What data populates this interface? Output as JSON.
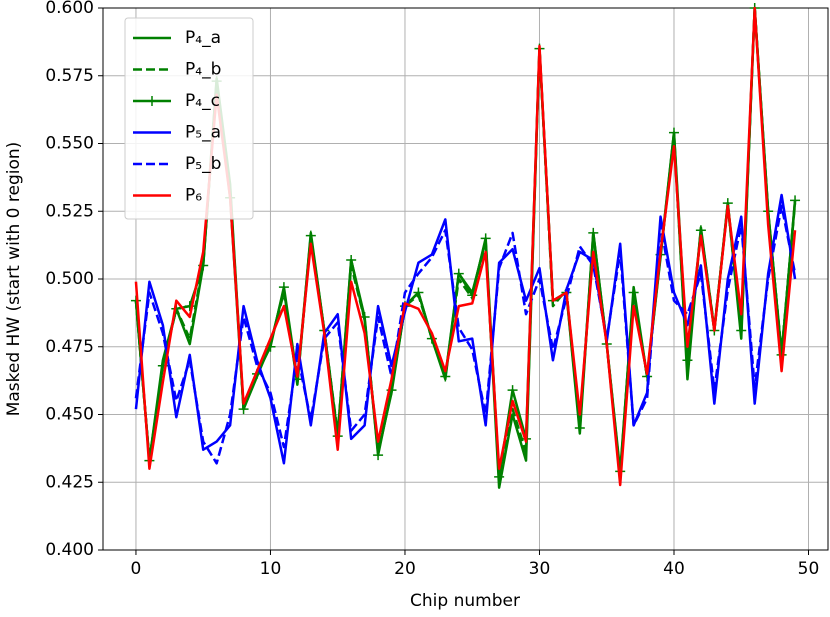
{
  "chart_data": {
    "type": "line",
    "x_label": "Chip number",
    "y_label": "Masked HW (start with 0 region)",
    "x": [
      0,
      1,
      2,
      3,
      4,
      5,
      6,
      7,
      8,
      9,
      10,
      11,
      12,
      13,
      14,
      15,
      16,
      17,
      18,
      19,
      20,
      21,
      22,
      23,
      24,
      25,
      26,
      27,
      28,
      29,
      30,
      31,
      32,
      33,
      34,
      35,
      36,
      37,
      38,
      39,
      40,
      41,
      42,
      43,
      44,
      45,
      46,
      47,
      48,
      49
    ],
    "xlim": [
      -2.45,
      51.45
    ],
    "xticks": [
      0,
      10,
      20,
      30,
      40,
      50
    ],
    "ylim": [
      0.4,
      0.6
    ],
    "yticks": [
      {
        "value": 0.4,
        "label": "0.400"
      },
      {
        "value": 0.425,
        "label": "0.425"
      },
      {
        "value": 0.45,
        "label": "0.450"
      },
      {
        "value": 0.475,
        "label": "0.475"
      },
      {
        "value": 0.5,
        "label": "0.500"
      },
      {
        "value": 0.525,
        "label": "0.525"
      },
      {
        "value": 0.55,
        "label": "0.550"
      },
      {
        "value": 0.575,
        "label": "0.575"
      },
      {
        "value": 0.6,
        "label": "0.600"
      }
    ],
    "grid": true,
    "legend": "upper left",
    "series": [
      {
        "name": "P₄_a",
        "color": "#008000",
        "dash": false,
        "marker": null,
        "values": [
          0.492,
          0.433,
          0.47,
          0.489,
          0.476,
          0.505,
          0.574,
          0.535,
          0.452,
          0.464,
          0.476,
          0.496,
          0.461,
          0.517,
          0.481,
          0.442,
          0.507,
          0.485,
          0.436,
          0.458,
          0.49,
          0.495,
          0.478,
          0.463,
          0.502,
          0.495,
          0.514,
          0.423,
          0.45,
          0.433,
          0.585,
          0.492,
          0.495,
          0.443,
          0.517,
          0.476,
          0.427,
          0.497,
          0.464,
          0.508,
          0.554,
          0.463,
          0.519,
          0.481,
          0.528,
          0.478,
          0.6,
          0.525,
          0.472,
          0.529
        ]
      },
      {
        "name": "P₄_b",
        "color": "#008000",
        "dash": true,
        "marker": null,
        "values": [
          0.492,
          0.433,
          0.468,
          0.489,
          0.478,
          0.506,
          0.572,
          0.533,
          0.452,
          0.465,
          0.476,
          0.495,
          0.462,
          0.515,
          0.481,
          0.443,
          0.505,
          0.485,
          0.437,
          0.459,
          0.49,
          0.494,
          0.478,
          0.464,
          0.5,
          0.493,
          0.513,
          0.426,
          0.452,
          0.436,
          0.585,
          0.49,
          0.496,
          0.446,
          0.515,
          0.476,
          0.428,
          0.495,
          0.464,
          0.509,
          0.552,
          0.466,
          0.518,
          0.482,
          0.527,
          0.48,
          0.6,
          0.524,
          0.473,
          0.528
        ]
      },
      {
        "name": "P₄_c",
        "color": "#008000",
        "dash": false,
        "marker": "+",
        "values": [
          0.492,
          0.433,
          0.468,
          0.489,
          0.49,
          0.505,
          0.573,
          0.53,
          0.452,
          0.465,
          0.475,
          0.497,
          0.463,
          0.516,
          0.481,
          0.442,
          0.507,
          0.486,
          0.435,
          0.459,
          0.49,
          0.495,
          0.478,
          0.464,
          0.502,
          0.494,
          0.515,
          0.427,
          0.459,
          0.441,
          0.585,
          0.492,
          0.495,
          0.445,
          0.517,
          0.476,
          0.429,
          0.495,
          0.464,
          0.509,
          0.554,
          0.47,
          0.518,
          0.481,
          0.528,
          0.481,
          0.6,
          0.525,
          0.472,
          0.529
        ]
      },
      {
        "name": "P₅_a",
        "color": "#0000ff",
        "dash": false,
        "marker": null,
        "values": [
          0.452,
          0.499,
          0.483,
          0.449,
          0.472,
          0.437,
          0.44,
          0.446,
          0.49,
          0.47,
          0.456,
          0.432,
          0.476,
          0.446,
          0.48,
          0.487,
          0.441,
          0.446,
          0.49,
          0.468,
          0.488,
          0.506,
          0.509,
          0.522,
          0.477,
          0.478,
          0.446,
          0.506,
          0.511,
          0.492,
          0.504,
          0.47,
          0.496,
          0.51,
          0.507,
          0.477,
          0.513,
          0.446,
          0.458,
          0.523,
          0.495,
          0.483,
          0.505,
          0.454,
          0.5,
          0.523,
          0.454,
          0.502,
          0.531,
          0.5
        ]
      },
      {
        "name": "P₅_b",
        "color": "#0000ff",
        "dash": true,
        "marker": null,
        "values": [
          0.456,
          0.495,
          0.48,
          0.455,
          0.47,
          0.44,
          0.432,
          0.45,
          0.486,
          0.468,
          0.458,
          0.438,
          0.472,
          0.448,
          0.478,
          0.484,
          0.444,
          0.45,
          0.486,
          0.464,
          0.495,
          0.502,
          0.508,
          0.518,
          0.482,
          0.474,
          0.45,
          0.504,
          0.517,
          0.487,
          0.5,
          0.474,
          0.493,
          0.512,
          0.505,
          0.478,
          0.51,
          0.446,
          0.456,
          0.52,
          0.492,
          0.487,
          0.502,
          0.459,
          0.496,
          0.52,
          0.46,
          0.5,
          0.527,
          0.502
        ]
      },
      {
        "name": "P₆",
        "color": "#ff0000",
        "dash": false,
        "marker": null,
        "values": [
          0.499,
          0.43,
          0.462,
          0.492,
          0.486,
          0.51,
          0.568,
          0.53,
          0.454,
          0.466,
          0.478,
          0.49,
          0.464,
          0.513,
          0.48,
          0.437,
          0.499,
          0.48,
          0.44,
          0.463,
          0.491,
          0.489,
          0.48,
          0.466,
          0.49,
          0.491,
          0.51,
          0.43,
          0.455,
          0.44,
          0.586,
          0.492,
          0.495,
          0.45,
          0.51,
          0.476,
          0.424,
          0.49,
          0.465,
          0.51,
          0.549,
          0.475,
          0.516,
          0.481,
          0.527,
          0.487,
          0.6,
          0.52,
          0.466,
          0.518
        ]
      }
    ]
  }
}
